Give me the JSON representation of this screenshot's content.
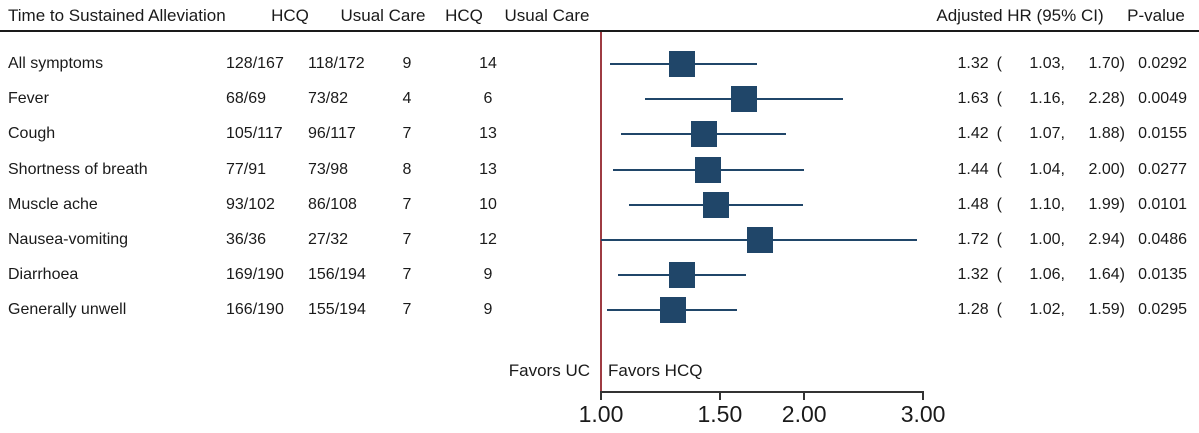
{
  "header": {
    "label": "Time to Sustained Alleviation",
    "hcq_events": "HCQ",
    "uc_events": "Usual Care",
    "hcq_median": "HCQ",
    "uc_median": "Usual Care",
    "adjusted_hr": "Adjusted HR (95% CI)",
    "p_value": "P-value"
  },
  "footer": {
    "favors_left": "Favors UC",
    "favors_right": "Favors HCQ"
  },
  "colors": {
    "marker": "#204669",
    "ref_line": "#9E3B42",
    "axis": "#333333",
    "text": "#1a1a1a"
  },
  "chart_data": {
    "type": "forest",
    "title": "Time to Sustained Alleviation",
    "scale": "log",
    "x_range": [
      1.0,
      3.0
    ],
    "ref_line_value": 1.0,
    "axis_ticks": [
      {
        "value": 1.0,
        "label": "1.00"
      },
      {
        "value": 1.5,
        "label": "1.50"
      },
      {
        "value": 2.0,
        "label": "2.00"
      },
      {
        "value": 3.0,
        "label": "3.00"
      }
    ],
    "rows": [
      {
        "label": "All symptoms",
        "hcq_events": "128/167",
        "uc_events": "118/172",
        "hcq_median": "9",
        "uc_median": "14",
        "hr": "1.32",
        "ci_low": "1.03",
        "ci_high": "1.70",
        "p_value": "0.0292"
      },
      {
        "label": "Fever",
        "hcq_events": "68/69",
        "uc_events": "73/82",
        "hcq_median": "4",
        "uc_median": "6",
        "hr": "1.63",
        "ci_low": "1.16",
        "ci_high": "2.28",
        "p_value": "0.0049"
      },
      {
        "label": "Cough",
        "hcq_events": "105/117",
        "uc_events": "96/117",
        "hcq_median": "7",
        "uc_median": "13",
        "hr": "1.42",
        "ci_low": "1.07",
        "ci_high": "1.88",
        "p_value": "0.0155"
      },
      {
        "label": "Shortness of breath",
        "hcq_events": "77/91",
        "uc_events": "73/98",
        "hcq_median": "8",
        "uc_median": "13",
        "hr": "1.44",
        "ci_low": "1.04",
        "ci_high": "2.00",
        "p_value": "0.0277"
      },
      {
        "label": "Muscle ache",
        "hcq_events": "93/102",
        "uc_events": "86/108",
        "hcq_median": "7",
        "uc_median": "10",
        "hr": "1.48",
        "ci_low": "1.10",
        "ci_high": "1.99",
        "p_value": "0.0101"
      },
      {
        "label": "Nausea-vomiting",
        "hcq_events": "36/36",
        "uc_events": "27/32",
        "hcq_median": "7",
        "uc_median": "12",
        "hr": "1.72",
        "ci_low": "1.00",
        "ci_high": "2.94",
        "p_value": "0.0486"
      },
      {
        "label": "Diarrhoea",
        "hcq_events": "169/190",
        "uc_events": "156/194",
        "hcq_median": "7",
        "uc_median": "9",
        "hr": "1.32",
        "ci_low": "1.06",
        "ci_high": "1.64",
        "p_value": "0.0135"
      },
      {
        "label": "Generally unwell",
        "hcq_events": "166/190",
        "uc_events": "155/194",
        "hcq_median": "7",
        "uc_median": "9",
        "hr": "1.28",
        "ci_low": "1.02",
        "ci_high": "1.59",
        "p_value": "0.0295"
      }
    ]
  }
}
